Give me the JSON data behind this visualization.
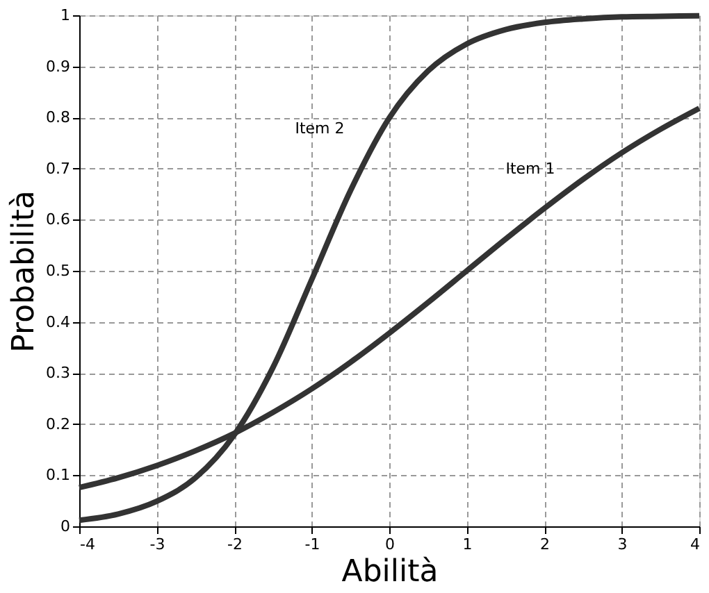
{
  "chart_data": {
    "type": "line",
    "xlabel": "Abilità",
    "ylabel": "Probabilità",
    "x": [
      -4,
      -3.5,
      -3,
      -2.5,
      -2,
      -1.5,
      -1,
      -0.5,
      0,
      0.5,
      1,
      1.5,
      2,
      2.5,
      3,
      3.5,
      4
    ],
    "series": [
      {
        "name": "Item 1",
        "color": "#333333",
        "values": [
          0.076,
          0.095,
          0.119,
          0.148,
          0.182,
          0.223,
          0.269,
          0.321,
          0.378,
          0.438,
          0.5,
          0.562,
          0.622,
          0.679,
          0.731,
          0.777,
          0.818
        ]
      },
      {
        "name": "Item 2",
        "color": "#333333",
        "values": [
          0.012,
          0.024,
          0.049,
          0.095,
          0.179,
          0.311,
          0.483,
          0.657,
          0.799,
          0.891,
          0.944,
          0.972,
          0.986,
          0.993,
          0.997,
          0.998,
          0.999
        ]
      }
    ],
    "legend": false,
    "xlim": [
      -4,
      4
    ],
    "xticks": [
      -4,
      -3,
      -2,
      -1,
      0,
      1,
      2,
      3,
      4
    ],
    "ylim": [
      0,
      1
    ],
    "yticks": [
      0,
      0.1,
      0.2,
      0.3,
      0.4,
      0.5,
      0.6,
      0.7,
      0.8,
      0.9,
      1
    ],
    "grid": true,
    "line_style": "solid",
    "marker": "none"
  }
}
